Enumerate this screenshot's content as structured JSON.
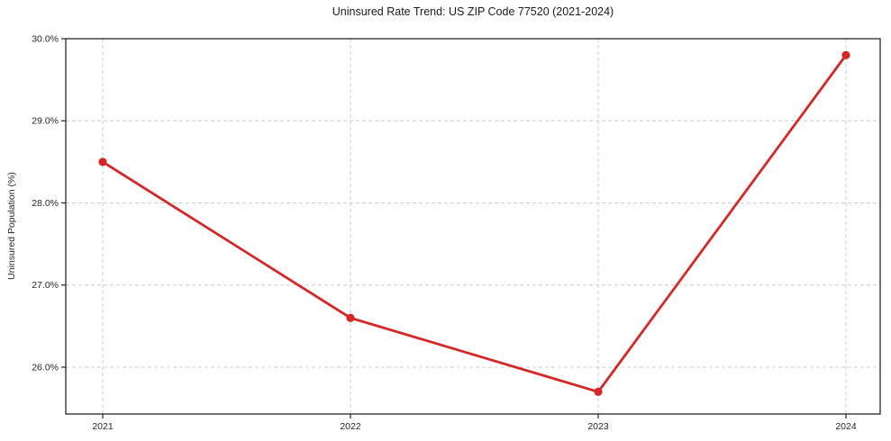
{
  "chart_data": {
    "type": "line",
    "title": "Uninsured Rate Trend: US ZIP Code 77520 (2021-2024)",
    "xlabel": "",
    "ylabel": "Uninsured Population (%)",
    "categories": [
      "2021",
      "2022",
      "2023",
      "2024"
    ],
    "values": [
      28.5,
      26.6,
      25.7,
      29.8
    ],
    "ylim": [
      25.43,
      30.0
    ],
    "yticks": [
      26.0,
      27.0,
      28.0,
      29.0,
      30.0
    ],
    "ytick_labels": [
      "26.0%",
      "27.0%",
      "28.0%",
      "29.0%",
      "30.0%"
    ],
    "grid": true,
    "grid_style": "dashed",
    "legend": "none",
    "line_color": "#d62728",
    "marker": "circle",
    "grid_color": "#cccccc",
    "spine_color": "#262626",
    "text_color": "#262626",
    "background_color": "#ffffff"
  }
}
